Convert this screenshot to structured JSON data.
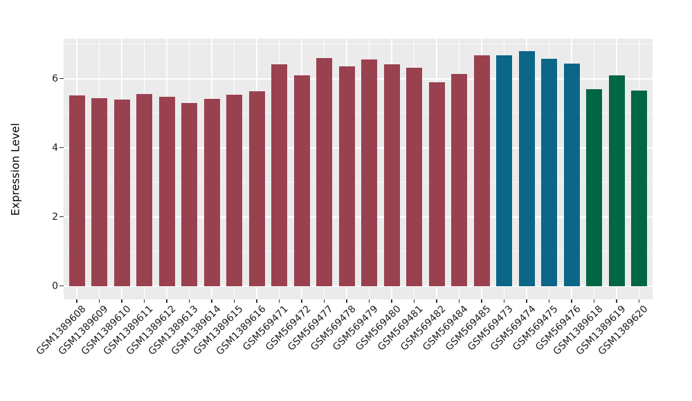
{
  "chart_data": {
    "type": "bar",
    "title": "",
    "xlabel": "",
    "ylabel": "Expression Level",
    "ylim": [
      0,
      7.15
    ],
    "yticks": [
      0,
      2,
      4,
      6
    ],
    "yticks_minor": [
      1,
      3,
      5,
      7
    ],
    "grid": "white major+minor horizontal gridlines and vertical major gridlines on grey panel",
    "legend_position": "none",
    "figure_bg": "#FFFFFF",
    "panel_bg": "#EBEBEB",
    "axis_text_color": "#1A1A1A",
    "palette": {
      "red": "#9A4150",
      "teal": "#0C6688",
      "green": "#006644"
    },
    "bars": [
      {
        "label": "GSM1389608",
        "value": 5.52,
        "group": "red"
      },
      {
        "label": "GSM1389609",
        "value": 5.44,
        "group": "red"
      },
      {
        "label": "GSM1389610",
        "value": 5.4,
        "group": "red"
      },
      {
        "label": "GSM1389611",
        "value": 5.56,
        "group": "red"
      },
      {
        "label": "GSM1389612",
        "value": 5.47,
        "group": "red"
      },
      {
        "label": "GSM1389613",
        "value": 5.3,
        "group": "red"
      },
      {
        "label": "GSM1389614",
        "value": 5.41,
        "group": "red"
      },
      {
        "label": "GSM1389615",
        "value": 5.53,
        "group": "red"
      },
      {
        "label": "GSM1389616",
        "value": 5.64,
        "group": "red"
      },
      {
        "label": "GSM569471",
        "value": 6.42,
        "group": "red"
      },
      {
        "label": "GSM569472",
        "value": 6.1,
        "group": "red"
      },
      {
        "label": "GSM569477",
        "value": 6.6,
        "group": "red"
      },
      {
        "label": "GSM569478",
        "value": 6.35,
        "group": "red"
      },
      {
        "label": "GSM569479",
        "value": 6.55,
        "group": "red"
      },
      {
        "label": "GSM569480",
        "value": 6.42,
        "group": "red"
      },
      {
        "label": "GSM569481",
        "value": 6.32,
        "group": "red"
      },
      {
        "label": "GSM569482",
        "value": 5.9,
        "group": "red"
      },
      {
        "label": "GSM569484",
        "value": 6.14,
        "group": "red"
      },
      {
        "label": "GSM569485",
        "value": 6.67,
        "group": "red"
      },
      {
        "label": "GSM569473",
        "value": 6.67,
        "group": "teal"
      },
      {
        "label": "GSM569474",
        "value": 6.79,
        "group": "teal"
      },
      {
        "label": "GSM569475",
        "value": 6.58,
        "group": "teal"
      },
      {
        "label": "GSM569476",
        "value": 6.44,
        "group": "teal"
      },
      {
        "label": "GSM1389618",
        "value": 5.69,
        "group": "green"
      },
      {
        "label": "GSM1389619",
        "value": 6.1,
        "group": "green"
      },
      {
        "label": "GSM1389620",
        "value": 5.66,
        "group": "green"
      }
    ]
  }
}
